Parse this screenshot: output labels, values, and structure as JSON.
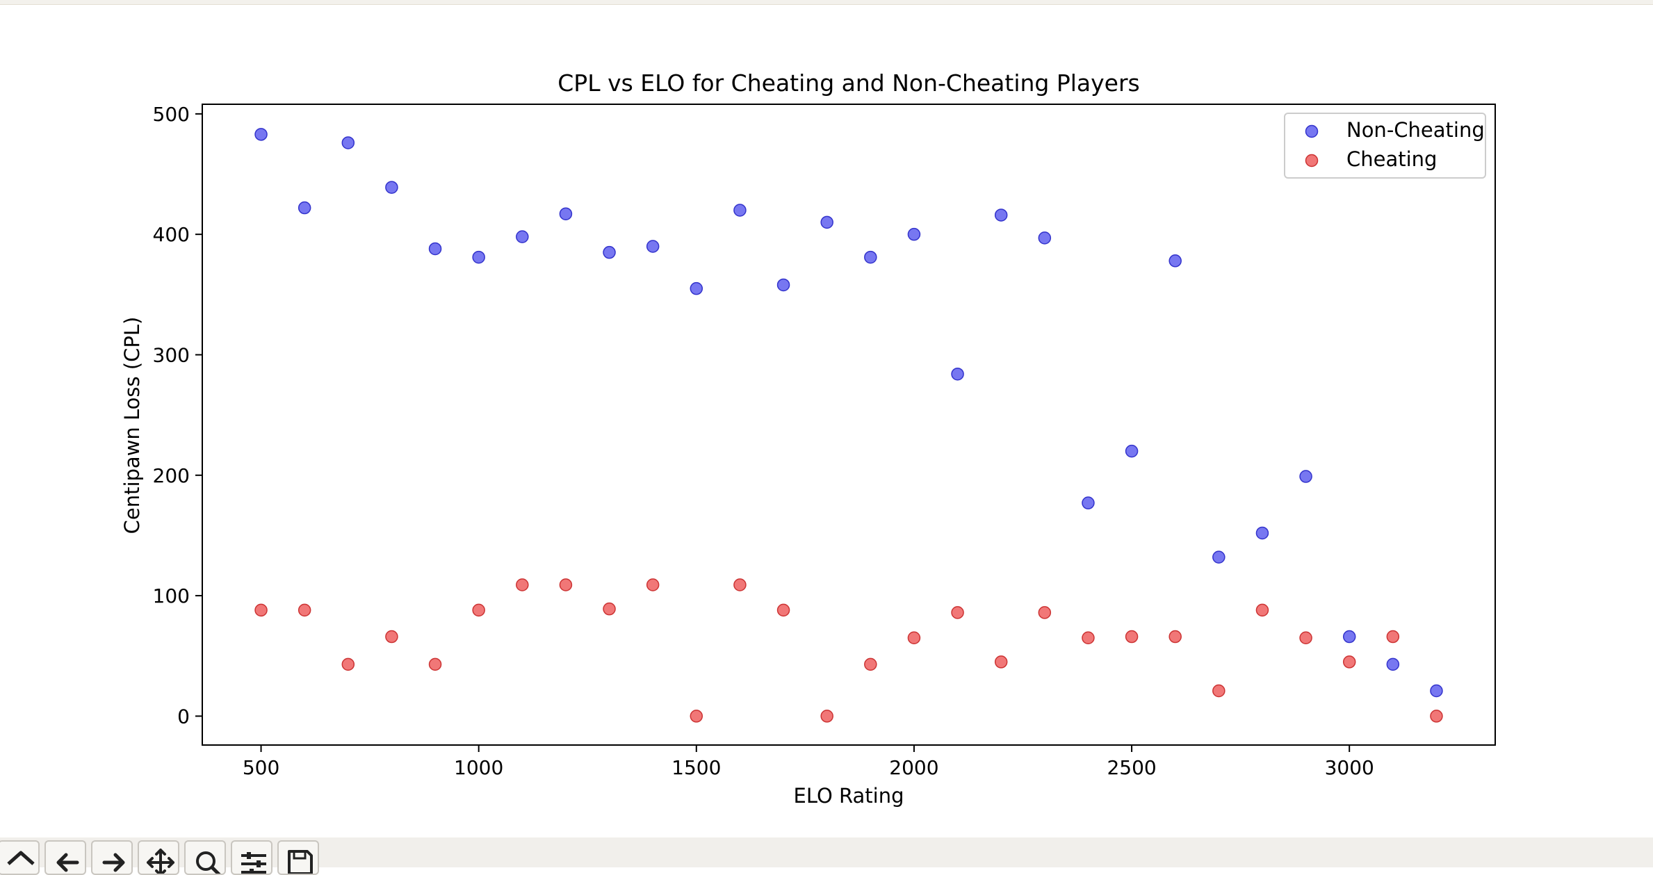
{
  "chart_data": {
    "type": "scatter",
    "title": "CPL vs ELO for Cheating and Non-Cheating Players",
    "xlabel": "ELO Rating",
    "ylabel": "Centipawn Loss (CPL)",
    "xlim": [
      365,
      3335
    ],
    "ylim": [
      -24,
      508
    ],
    "xticks": [
      500,
      1000,
      1500,
      2000,
      2500,
      3000
    ],
    "yticks": [
      0,
      100,
      200,
      300,
      400,
      500
    ],
    "legend_position": "top-right",
    "series": [
      {
        "name": "Non-Cheating",
        "color": "#5555ee",
        "points": [
          [
            500,
            483
          ],
          [
            600,
            422
          ],
          [
            700,
            476
          ],
          [
            800,
            439
          ],
          [
            900,
            388
          ],
          [
            1000,
            381
          ],
          [
            1100,
            398
          ],
          [
            1200,
            417
          ],
          [
            1300,
            385
          ],
          [
            1400,
            390
          ],
          [
            1500,
            355
          ],
          [
            1600,
            420
          ],
          [
            1700,
            358
          ],
          [
            1800,
            410
          ],
          [
            1900,
            381
          ],
          [
            2000,
            400
          ],
          [
            2100,
            284
          ],
          [
            2200,
            416
          ],
          [
            2300,
            397
          ],
          [
            2400,
            177
          ],
          [
            2500,
            220
          ],
          [
            2600,
            378
          ],
          [
            2700,
            132
          ],
          [
            2800,
            152
          ],
          [
            2900,
            199
          ],
          [
            3000,
            66
          ],
          [
            3100,
            43
          ],
          [
            3200,
            21
          ]
        ]
      },
      {
        "name": "Cheating",
        "color": "#ee5555",
        "points": [
          [
            500,
            88
          ],
          [
            600,
            88
          ],
          [
            700,
            43
          ],
          [
            800,
            66
          ],
          [
            900,
            43
          ],
          [
            1000,
            88
          ],
          [
            1100,
            109
          ],
          [
            1200,
            109
          ],
          [
            1300,
            89
          ],
          [
            1400,
            109
          ],
          [
            1500,
            0
          ],
          [
            1600,
            109
          ],
          [
            1700,
            88
          ],
          [
            1800,
            0
          ],
          [
            1900,
            43
          ],
          [
            2000,
            65
          ],
          [
            2100,
            86
          ],
          [
            2200,
            45
          ],
          [
            2300,
            86
          ],
          [
            2400,
            65
          ],
          [
            2500,
            66
          ],
          [
            2600,
            66
          ],
          [
            2700,
            21
          ],
          [
            2800,
            88
          ],
          [
            2900,
            65
          ],
          [
            3000,
            45
          ],
          [
            3100,
            66
          ],
          [
            3200,
            0
          ]
        ]
      }
    ]
  },
  "toolbar": {
    "icons": [
      "home-icon",
      "back-arrow-icon",
      "forward-arrow-icon",
      "pan-icon",
      "zoom-icon",
      "configure-subplots-icon",
      "save-icon"
    ]
  }
}
